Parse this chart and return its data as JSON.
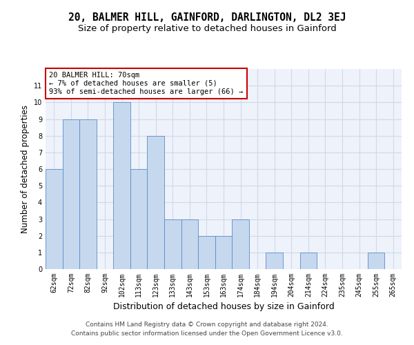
{
  "title": "20, BALMER HILL, GAINFORD, DARLINGTON, DL2 3EJ",
  "subtitle": "Size of property relative to detached houses in Gainford",
  "xlabel": "Distribution of detached houses by size in Gainford",
  "ylabel": "Number of detached properties",
  "categories": [
    "62sqm",
    "72sqm",
    "82sqm",
    "92sqm",
    "102sqm",
    "113sqm",
    "123sqm",
    "133sqm",
    "143sqm",
    "153sqm",
    "163sqm",
    "174sqm",
    "184sqm",
    "194sqm",
    "204sqm",
    "214sqm",
    "224sqm",
    "235sqm",
    "245sqm",
    "255sqm",
    "265sqm"
  ],
  "values": [
    6,
    9,
    9,
    0,
    10,
    6,
    8,
    3,
    3,
    2,
    2,
    3,
    0,
    1,
    0,
    1,
    0,
    0,
    0,
    1,
    0
  ],
  "bar_color": "#c5d8ee",
  "bar_edge_color": "#5b8ac7",
  "annotation_box_text": "20 BALMER HILL: 70sqm\n← 7% of detached houses are smaller (5)\n93% of semi-detached houses are larger (66) →",
  "annotation_box_color": "#ffffff",
  "annotation_box_edge_color": "#cc0000",
  "ylim": [
    0,
    12
  ],
  "yticks": [
    0,
    1,
    2,
    3,
    4,
    5,
    6,
    7,
    8,
    9,
    10,
    11
  ],
  "grid_color": "#d0d8e8",
  "background_color": "#eef2fa",
  "footer_line1": "Contains HM Land Registry data © Crown copyright and database right 2024.",
  "footer_line2": "Contains public sector information licensed under the Open Government Licence v3.0.",
  "title_fontsize": 10.5,
  "subtitle_fontsize": 9.5,
  "xlabel_fontsize": 9,
  "ylabel_fontsize": 8.5,
  "tick_fontsize": 7,
  "footer_fontsize": 6.5,
  "ann_fontsize": 7.5
}
